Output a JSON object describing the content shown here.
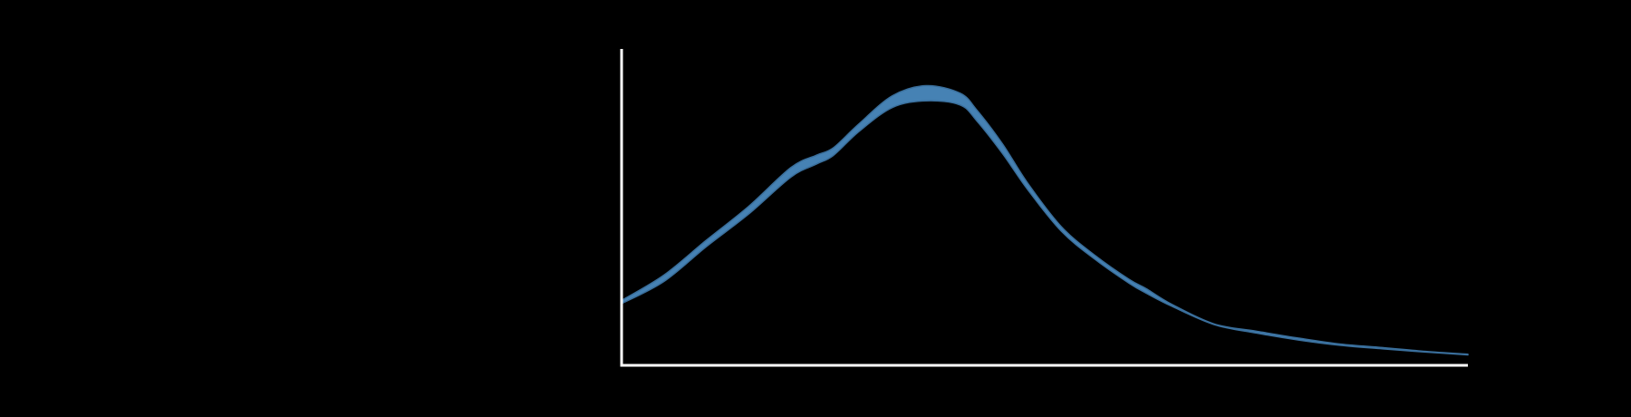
{
  "chart_data": {
    "type": "area",
    "title": "",
    "xlabel": "",
    "ylabel": "",
    "xlim": [
      0,
      100
    ],
    "ylim": [
      0,
      100
    ],
    "grid": false,
    "legend": "none",
    "colors": {
      "background": "#000000",
      "axis": "#ffffff",
      "band_fill": "#4682b4",
      "band_edge": "#3a6f9c"
    },
    "series": [
      {
        "x": [
          0,
          5,
          10,
          15,
          20,
          23,
          25,
          28,
          32,
          36,
          40,
          42,
          45,
          48,
          52,
          56,
          60,
          62,
          65,
          70,
          75,
          80,
          85,
          90,
          95,
          100
        ],
        "lower": [
          19.5,
          26.5,
          37.5,
          47.8,
          59.5,
          63.6,
          66.3,
          73.8,
          81.5,
          83.6,
          82.3,
          77.2,
          67.0,
          55.5,
          42.3,
          33.4,
          25.9,
          22.8,
          18.7,
          12.9,
          10.2,
          8.0,
          6.3,
          5.2,
          4.2,
          3.3
        ],
        "upper": [
          20.5,
          28.5,
          39.5,
          50.2,
          62.5,
          66.4,
          68.7,
          76.2,
          85.2,
          88.4,
          86.0,
          80.6,
          70.0,
          57.5,
          43.7,
          34.6,
          27.1,
          24.2,
          19.3,
          13.1,
          10.8,
          8.6,
          6.7,
          5.6,
          4.4,
          3.5
        ]
      }
    ]
  }
}
